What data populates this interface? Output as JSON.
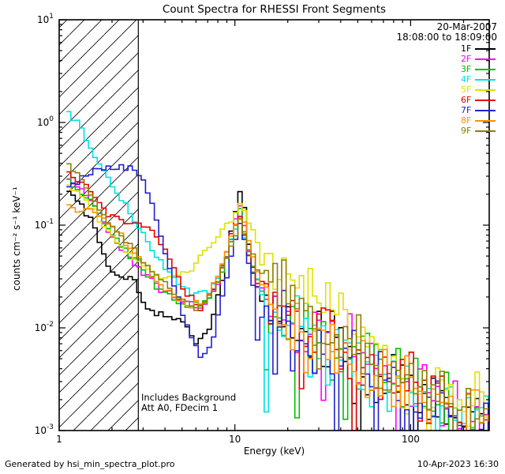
{
  "chart_data": {
    "type": "line",
    "title": "Count Spectra for RHESSI Front Segments",
    "xlabel": "Energy (keV)",
    "ylabel": "counts cm⁻² s⁻¹ keV⁻¹",
    "x_scale": "log",
    "y_scale": "log",
    "xlim": [
      1,
      280
    ],
    "ylim": [
      0.001,
      10
    ],
    "x_ticks": [
      {
        "value": 1,
        "label": "1"
      },
      {
        "value": 10,
        "label": "10"
      },
      {
        "value": 100,
        "label": "100"
      }
    ],
    "y_ticks": [
      {
        "value": 0.001,
        "base": "10",
        "exp": "-3"
      },
      {
        "value": 0.01,
        "base": "10",
        "exp": "-2"
      },
      {
        "value": 0.1,
        "base": "10",
        "exp": "-1"
      },
      {
        "value": 1,
        "base": "10",
        "exp": "0"
      },
      {
        "value": 10,
        "base": "10",
        "exp": "1"
      }
    ],
    "hatched_region": {
      "x_from": 1,
      "x_to": 2.82
    },
    "annotations": [
      "Includes Background",
      "Att A0, FDecim 1"
    ],
    "legend_position": "top-right",
    "observation": {
      "date": "20-Mar-2007",
      "time_range": "18:08:00 to 18:09:00"
    },
    "bins_per_decade": 40,
    "x_start": 1.1,
    "noise": {
      "low_dex": 0.05,
      "high_dex": 0.42,
      "transition_keV": 13,
      "transition_end_keV": 18,
      "spike_prob": 0.06,
      "spike_extra_dex": 1.0
    },
    "series": [
      {
        "name": "1F",
        "color": "#000000",
        "seed": 101,
        "anchors": [
          [
            1.0,
            0.28
          ],
          [
            1.5,
            0.12
          ],
          [
            2.0,
            0.035
          ],
          [
            2.6,
            0.03
          ],
          [
            3.2,
            0.016
          ],
          [
            4.0,
            0.013
          ],
          [
            5.0,
            0.012
          ],
          [
            6.0,
            0.007
          ],
          [
            7.0,
            0.009
          ],
          [
            8.0,
            0.02
          ],
          [
            9.0,
            0.05
          ],
          [
            10.0,
            0.13
          ],
          [
            10.8,
            0.22
          ],
          [
            11.5,
            0.12
          ],
          [
            12.5,
            0.035
          ],
          [
            14,
            0.02
          ],
          [
            17,
            0.012
          ],
          [
            20,
            0.01
          ],
          [
            30,
            0.007
          ],
          [
            50,
            0.004
          ],
          [
            80,
            0.0025
          ],
          [
            120,
            0.002
          ],
          [
            200,
            0.0015
          ],
          [
            280,
            0.0012
          ]
        ]
      },
      {
        "name": "2F",
        "color": "#FF00FF",
        "seed": 202,
        "anchors": [
          [
            1.0,
            0.32
          ],
          [
            1.4,
            0.22
          ],
          [
            1.9,
            0.09
          ],
          [
            2.4,
            0.05
          ],
          [
            3.0,
            0.035
          ],
          [
            4.0,
            0.022
          ],
          [
            5.0,
            0.018
          ],
          [
            6.5,
            0.015
          ],
          [
            8.0,
            0.025
          ],
          [
            9.5,
            0.07
          ],
          [
            10.6,
            0.16
          ],
          [
            11.5,
            0.08
          ],
          [
            13,
            0.03
          ],
          [
            16,
            0.018
          ],
          [
            20,
            0.013
          ],
          [
            30,
            0.008
          ],
          [
            50,
            0.005
          ],
          [
            80,
            0.003
          ],
          [
            120,
            0.002
          ],
          [
            200,
            0.0014
          ],
          [
            280,
            0.0011
          ]
        ]
      },
      {
        "name": "3F",
        "color": "#00C000",
        "seed": 303,
        "anchors": [
          [
            1.0,
            0.3
          ],
          [
            1.5,
            0.18
          ],
          [
            2.0,
            0.08
          ],
          [
            2.6,
            0.05
          ],
          [
            3.3,
            0.03
          ],
          [
            4.2,
            0.02
          ],
          [
            5.5,
            0.015
          ],
          [
            7.0,
            0.018
          ],
          [
            8.5,
            0.035
          ],
          [
            10,
            0.1
          ],
          [
            10.8,
            0.14
          ],
          [
            12,
            0.05
          ],
          [
            14,
            0.022
          ],
          [
            18,
            0.013
          ],
          [
            25,
            0.009
          ],
          [
            40,
            0.006
          ],
          [
            70,
            0.0035
          ],
          [
            110,
            0.0022
          ],
          [
            180,
            0.0015
          ],
          [
            280,
            0.0011
          ]
        ]
      },
      {
        "name": "4F",
        "color": "#00E0E0",
        "seed": 404,
        "anchors": [
          [
            1.0,
            1.5
          ],
          [
            1.3,
            1.0
          ],
          [
            1.6,
            0.45
          ],
          [
            1.9,
            0.28
          ],
          [
            2.3,
            0.17
          ],
          [
            2.8,
            0.1
          ],
          [
            3.5,
            0.05
          ],
          [
            4.5,
            0.03
          ],
          [
            6.0,
            0.02
          ],
          [
            7.5,
            0.025
          ],
          [
            9.0,
            0.05
          ],
          [
            10.5,
            0.13
          ],
          [
            11.5,
            0.07
          ],
          [
            13,
            0.03
          ],
          [
            16,
            0.015
          ],
          [
            22,
            0.01
          ],
          [
            35,
            0.006
          ],
          [
            60,
            0.0035
          ],
          [
            100,
            0.0022
          ],
          [
            170,
            0.0015
          ],
          [
            280,
            0.0011
          ]
        ]
      },
      {
        "name": "5F",
        "color": "#E0E000",
        "seed": 505,
        "anchors": [
          [
            1.0,
            0.3
          ],
          [
            1.4,
            0.18
          ],
          [
            1.8,
            0.1
          ],
          [
            2.3,
            0.06
          ],
          [
            3.0,
            0.04
          ],
          [
            4.0,
            0.03
          ],
          [
            5.5,
            0.035
          ],
          [
            7.0,
            0.06
          ],
          [
            8.5,
            0.09
          ],
          [
            10,
            0.13
          ],
          [
            11,
            0.16
          ],
          [
            12.5,
            0.09
          ],
          [
            14,
            0.05
          ],
          [
            17,
            0.035
          ],
          [
            22,
            0.025
          ],
          [
            30,
            0.016
          ],
          [
            45,
            0.009
          ],
          [
            70,
            0.005
          ],
          [
            110,
            0.003
          ],
          [
            180,
            0.002
          ],
          [
            280,
            0.0013
          ]
        ]
      },
      {
        "name": "6F",
        "color": "#E60000",
        "seed": 606,
        "anchors": [
          [
            1.0,
            0.35
          ],
          [
            1.4,
            0.25
          ],
          [
            1.9,
            0.13
          ],
          [
            2.5,
            0.1
          ],
          [
            3.2,
            0.1
          ],
          [
            4.0,
            0.06
          ],
          [
            5.0,
            0.025
          ],
          [
            6.5,
            0.015
          ],
          [
            8.0,
            0.03
          ],
          [
            9.5,
            0.08
          ],
          [
            10.6,
            0.13
          ],
          [
            12,
            0.05
          ],
          [
            14,
            0.025
          ],
          [
            18,
            0.014
          ],
          [
            25,
            0.009
          ],
          [
            40,
            0.006
          ],
          [
            65,
            0.004
          ],
          [
            100,
            0.0025
          ],
          [
            160,
            0.0017
          ],
          [
            280,
            0.0012
          ]
        ]
      },
      {
        "name": "7F",
        "color": "#2020D0",
        "seed": 707,
        "anchors": [
          [
            1.0,
            0.2
          ],
          [
            1.3,
            0.28
          ],
          [
            1.7,
            0.35
          ],
          [
            2.2,
            0.37
          ],
          [
            2.8,
            0.33
          ],
          [
            3.3,
            0.18
          ],
          [
            3.8,
            0.08
          ],
          [
            4.5,
            0.025
          ],
          [
            5.5,
            0.009
          ],
          [
            6.5,
            0.005
          ],
          [
            7.5,
            0.008
          ],
          [
            8.5,
            0.02
          ],
          [
            9.7,
            0.06
          ],
          [
            10.7,
            0.11
          ],
          [
            11.7,
            0.05
          ],
          [
            13,
            0.02
          ],
          [
            16,
            0.012
          ],
          [
            21,
            0.009
          ],
          [
            32,
            0.006
          ],
          [
            55,
            0.004
          ],
          [
            90,
            0.0025
          ],
          [
            150,
            0.0016
          ],
          [
            280,
            0.0011
          ]
        ]
      },
      {
        "name": "8F",
        "color": "#FF9000",
        "seed": 808,
        "anchors": [
          [
            1.0,
            0.15
          ],
          [
            1.5,
            0.14
          ],
          [
            2.0,
            0.1
          ],
          [
            2.6,
            0.06
          ],
          [
            3.3,
            0.035
          ],
          [
            4.2,
            0.022
          ],
          [
            5.5,
            0.016
          ],
          [
            7.0,
            0.02
          ],
          [
            8.5,
            0.04
          ],
          [
            10,
            0.1
          ],
          [
            11,
            0.13
          ],
          [
            12.5,
            0.05
          ],
          [
            15,
            0.022
          ],
          [
            19,
            0.013
          ],
          [
            27,
            0.009
          ],
          [
            42,
            0.006
          ],
          [
            70,
            0.0035
          ],
          [
            110,
            0.0022
          ],
          [
            180,
            0.0015
          ],
          [
            280,
            0.0012
          ]
        ]
      },
      {
        "name": "9F",
        "color": "#8F8000",
        "seed": 909,
        "anchors": [
          [
            1.0,
            0.42
          ],
          [
            1.3,
            0.3
          ],
          [
            1.7,
            0.15
          ],
          [
            2.2,
            0.08
          ],
          [
            2.8,
            0.05
          ],
          [
            3.6,
            0.03
          ],
          [
            4.8,
            0.02
          ],
          [
            6.2,
            0.015
          ],
          [
            7.8,
            0.025
          ],
          [
            9.3,
            0.06
          ],
          [
            10.6,
            0.11
          ],
          [
            12,
            0.06
          ],
          [
            14,
            0.035
          ],
          [
            17,
            0.025
          ],
          [
            22,
            0.017
          ],
          [
            30,
            0.011
          ],
          [
            45,
            0.007
          ],
          [
            70,
            0.0045
          ],
          [
            110,
            0.0028
          ],
          [
            180,
            0.0018
          ],
          [
            280,
            0.0013
          ]
        ]
      }
    ]
  },
  "footer": {
    "left": "Generated by hsi_min_spectra_plot.pro",
    "right": "10-Apr-2023 16:30"
  }
}
